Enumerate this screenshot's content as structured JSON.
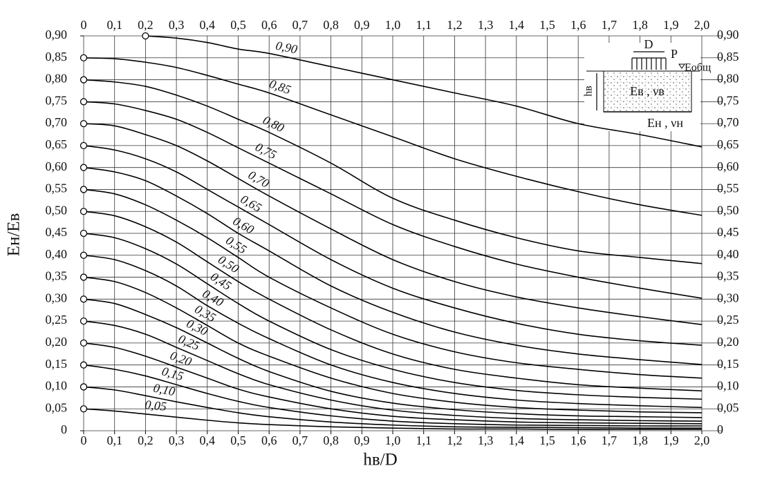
{
  "chart_data": {
    "type": "line",
    "xlabel": "hв/D",
    "ylabel": "Eн/Eв",
    "x": [
      0,
      0.1,
      0.2,
      0.3,
      0.4,
      0.5,
      0.6,
      0.8,
      1.0,
      1.2,
      1.4,
      1.6,
      1.8,
      2.0
    ],
    "xlim": [
      0,
      2.0
    ],
    "ylim": [
      0,
      0.9
    ],
    "grid": true,
    "xticks": [
      0,
      {
        "value": 0.1,
        "label": "0,1"
      },
      {
        "value": 0.2,
        "label": "0,2"
      },
      {
        "value": 0.3,
        "label": "0,3"
      },
      {
        "value": 0.4,
        "label": "0,4"
      },
      {
        "value": 0.5,
        "label": "0,5"
      },
      {
        "value": 0.6,
        "label": "0,6"
      },
      {
        "value": 0.7,
        "label": "0,7"
      },
      {
        "value": 0.8,
        "label": "0,8"
      },
      {
        "value": 0.9,
        "label": "0,9"
      },
      {
        "value": 1.0,
        "label": "1,0"
      },
      {
        "value": 1.1,
        "label": "1,1"
      },
      {
        "value": 1.2,
        "label": "1,2"
      },
      {
        "value": 1.3,
        "label": "1,3"
      },
      {
        "value": 1.4,
        "label": "1,4"
      },
      {
        "value": 1.5,
        "label": "1,5"
      },
      {
        "value": 1.6,
        "label": "1,6"
      },
      {
        "value": 1.7,
        "label": "1,7"
      },
      {
        "value": 1.8,
        "label": "1,8"
      },
      {
        "value": 1.9,
        "label": "1,9"
      },
      {
        "value": 2.0,
        "label": "2,0"
      }
    ],
    "yticks": [
      0,
      {
        "value": 0.05,
        "label": "0,05"
      },
      {
        "value": 0.1,
        "label": "0,10"
      },
      {
        "value": 0.15,
        "label": "0,15"
      },
      {
        "value": 0.2,
        "label": "0,20"
      },
      {
        "value": 0.25,
        "label": "0,25"
      },
      {
        "value": 0.3,
        "label": "0,30"
      },
      {
        "value": 0.35,
        "label": "0,35"
      },
      {
        "value": 0.4,
        "label": "0,40"
      },
      {
        "value": 0.45,
        "label": "0,45"
      },
      {
        "value": 0.5,
        "label": "0,50"
      },
      {
        "value": 0.55,
        "label": "0,55"
      },
      {
        "value": 0.6,
        "label": "0,60"
      },
      {
        "value": 0.65,
        "label": "0,65"
      },
      {
        "value": 0.7,
        "label": "0,70"
      },
      {
        "value": 0.75,
        "label": "0,75"
      },
      {
        "value": 0.8,
        "label": "0,80"
      },
      {
        "value": 0.85,
        "label": "0,85"
      },
      {
        "value": 0.9,
        "label": "0,90"
      }
    ],
    "series": [
      {
        "name": "0,90",
        "color": "#000000",
        "values": [
          null,
          null,
          0.9,
          0.895,
          0.885,
          0.87,
          0.86,
          0.83,
          0.8,
          0.77,
          0.74,
          0.7,
          0.675,
          0.647
        ]
      },
      {
        "name": "0,85",
        "color": "#000000",
        "values": [
          0.85,
          0.848,
          0.84,
          0.828,
          0.81,
          0.79,
          0.77,
          0.72,
          0.67,
          0.62,
          0.58,
          0.545,
          0.515,
          0.491
        ]
      },
      {
        "name": "0,80",
        "color": "#000000",
        "values": [
          0.8,
          0.795,
          0.785,
          0.765,
          0.74,
          0.71,
          0.68,
          0.61,
          0.53,
          0.48,
          0.44,
          0.41,
          0.395,
          0.381
        ]
      },
      {
        "name": "0,75",
        "color": "#000000",
        "values": [
          0.75,
          0.745,
          0.73,
          0.71,
          0.68,
          0.645,
          0.61,
          0.54,
          0.47,
          0.42,
          0.38,
          0.35,
          0.325,
          0.302
        ]
      },
      {
        "name": "0,70",
        "color": "#000000",
        "values": [
          0.7,
          0.695,
          0.675,
          0.65,
          0.615,
          0.575,
          0.535,
          0.46,
          0.39,
          0.34,
          0.305,
          0.28,
          0.26,
          0.242
        ]
      },
      {
        "name": "0,65",
        "color": "#000000",
        "values": [
          0.65,
          0.64,
          0.62,
          0.59,
          0.55,
          0.51,
          0.47,
          0.39,
          0.325,
          0.28,
          0.245,
          0.22,
          0.205,
          0.195
        ]
      },
      {
        "name": "0,60",
        "color": "#000000",
        "values": [
          0.6,
          0.59,
          0.57,
          0.535,
          0.495,
          0.45,
          0.41,
          0.33,
          0.27,
          0.225,
          0.195,
          0.175,
          0.162,
          0.151
        ]
      },
      {
        "name": "0,55",
        "color": "#000000",
        "values": [
          0.55,
          0.54,
          0.515,
          0.48,
          0.44,
          0.395,
          0.35,
          0.28,
          0.22,
          0.18,
          0.155,
          0.14,
          0.128,
          0.12
        ]
      },
      {
        "name": "0,50",
        "color": "#000000",
        "values": [
          0.5,
          0.49,
          0.465,
          0.43,
          0.385,
          0.34,
          0.3,
          0.23,
          0.175,
          0.14,
          0.12,
          0.105,
          0.097,
          0.091
        ]
      },
      {
        "name": "0,45",
        "color": "#000000",
        "values": [
          0.45,
          0.44,
          0.415,
          0.38,
          0.335,
          0.29,
          0.25,
          0.185,
          0.14,
          0.11,
          0.092,
          0.082,
          0.076,
          0.072
        ]
      },
      {
        "name": "0,40",
        "color": "#000000",
        "values": [
          0.4,
          0.39,
          0.365,
          0.33,
          0.285,
          0.245,
          0.21,
          0.15,
          0.11,
          0.085,
          0.07,
          0.062,
          0.057,
          0.053
        ]
      },
      {
        "name": "0,35",
        "color": "#000000",
        "values": [
          0.35,
          0.34,
          0.315,
          0.28,
          0.24,
          0.2,
          0.17,
          0.12,
          0.085,
          0.065,
          0.053,
          0.047,
          0.043,
          0.041
        ]
      },
      {
        "name": "0,30",
        "color": "#000000",
        "values": [
          0.3,
          0.29,
          0.265,
          0.235,
          0.2,
          0.165,
          0.135,
          0.09,
          0.063,
          0.048,
          0.039,
          0.034,
          0.032,
          0.03
        ]
      },
      {
        "name": "0,25",
        "color": "#000000",
        "values": [
          0.25,
          0.24,
          0.22,
          0.19,
          0.16,
          0.13,
          0.105,
          0.07,
          0.047,
          0.035,
          0.028,
          0.025,
          0.023,
          0.022
        ]
      },
      {
        "name": "0,20",
        "color": "#000000",
        "values": [
          0.2,
          0.19,
          0.17,
          0.145,
          0.12,
          0.095,
          0.077,
          0.05,
          0.033,
          0.025,
          0.02,
          0.018,
          0.017,
          0.016
        ]
      },
      {
        "name": "0,15",
        "color": "#000000",
        "values": [
          0.15,
          0.14,
          0.125,
          0.105,
          0.085,
          0.067,
          0.053,
          0.034,
          0.022,
          0.016,
          0.013,
          0.012,
          0.011,
          0.011
        ]
      },
      {
        "name": "0,10",
        "color": "#000000",
        "values": [
          0.1,
          0.093,
          0.08,
          0.066,
          0.053,
          0.041,
          0.032,
          0.02,
          0.013,
          0.009,
          0.008,
          0.007,
          0.006,
          0.006
        ]
      },
      {
        "name": "0,05",
        "color": "#000000",
        "values": [
          0.05,
          0.045,
          0.038,
          0.031,
          0.024,
          0.018,
          0.014,
          0.009,
          0.006,
          0.004,
          0.004,
          0.003,
          0.003,
          0.003
        ]
      }
    ],
    "inset": {
      "d": "D",
      "p": "P",
      "e_total": "Eобщ",
      "h": "hв",
      "upper": "Eв , νв",
      "lower": "Eн , νн"
    }
  }
}
